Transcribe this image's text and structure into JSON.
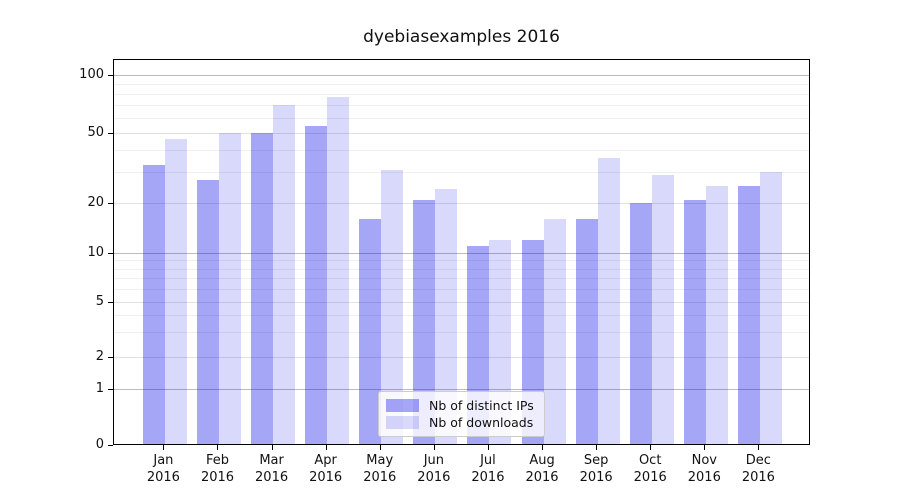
{
  "title": "dyebiasexamples 2016",
  "chart_data": {
    "type": "bar",
    "title": "dyebiasexamples 2016",
    "categories": [
      "Jan 2016",
      "Feb 2016",
      "Mar 2016",
      "Apr 2016",
      "May 2016",
      "Jun 2016",
      "Jul 2016",
      "Aug 2016",
      "Sep 2016",
      "Oct 2016",
      "Nov 2016",
      "Dec 2016"
    ],
    "x_tick_months": [
      "Jan",
      "Feb",
      "Mar",
      "Apr",
      "May",
      "Jun",
      "Jul",
      "Aug",
      "Sep",
      "Oct",
      "Nov",
      "Dec"
    ],
    "x_tick_year": "2016",
    "series": [
      {
        "name": "Nb of distinct IPs",
        "color_hex": "#a6a6f6",
        "css_fill": "rgba(0,0,230,0.35)",
        "values": [
          33,
          27,
          50,
          54,
          16,
          21,
          11,
          12,
          16,
          20,
          21,
          25
        ]
      },
      {
        "name": "Nb of downloads",
        "color_hex": "#d9d9fb",
        "css_fill": "rgba(0,0,230,0.15)",
        "values": [
          46,
          50,
          70,
          77,
          31,
          24,
          12,
          16,
          36,
          29,
          25,
          30
        ]
      }
    ],
    "yscale": "symlog",
    "ylim": [
      0,
      120
    ],
    "y_ticks": [
      100,
      50,
      20,
      10,
      5,
      2,
      1,
      0
    ],
    "y_tick_labels": [
      "100",
      "50",
      "20",
      "10",
      "5",
      "2",
      "1",
      "0"
    ],
    "y_minor_ticks": [
      3,
      4,
      6,
      7,
      8,
      9,
      30,
      40,
      60,
      70,
      80,
      90
    ],
    "y_major_gridlines": [
      1,
      10,
      100
    ],
    "y_labeled_minor_gridlines": [
      2,
      5,
      20,
      50
    ],
    "grid": true,
    "legend_position": "lower center",
    "xlabel": "",
    "ylabel": ""
  },
  "legend": {
    "items": [
      "Nb of distinct IPs",
      "Nb of downloads"
    ]
  }
}
